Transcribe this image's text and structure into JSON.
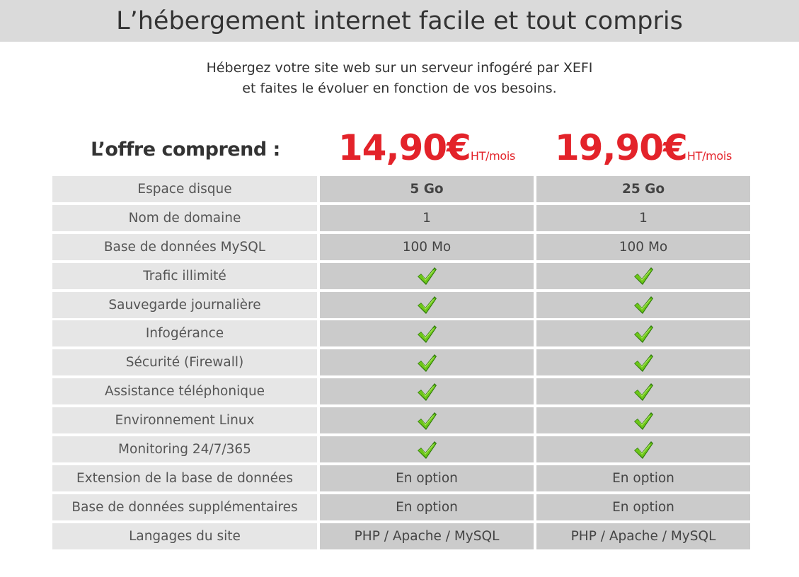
{
  "header": {
    "title": "L’hébergement internet facile et tout compris"
  },
  "intro": {
    "line1": "Hébergez votre site web sur un serveur infogéré par XEFI",
    "line2": "et faites le évoluer en fonction de vos besoins."
  },
  "offer": {
    "label": "L’offre comprend :",
    "plans": [
      {
        "price": "14,90€",
        "unit": "HT/mois"
      },
      {
        "price": "19,90€",
        "unit": "HT/mois"
      }
    ]
  },
  "colors": {
    "price_red": "#e3232a",
    "check_green": "#6cc618"
  },
  "icons": {
    "included": "checkmark-icon"
  },
  "features": [
    {
      "label": "Espace disque",
      "plan1": "5 Go",
      "plan2": "25 Go",
      "bold": true
    },
    {
      "label": "Nom de domaine",
      "plan1": "1",
      "plan2": "1"
    },
    {
      "label": "Base de données MySQL",
      "plan1": "100 Mo",
      "plan2": "100 Mo"
    },
    {
      "label": "Trafic illimité",
      "check": true
    },
    {
      "label": "Sauvegarde journalière",
      "check": true
    },
    {
      "label": "Infogérance",
      "check": true
    },
    {
      "label": "Sécurité (Firewall)",
      "check": true
    },
    {
      "label": "Assistance téléphonique",
      "check": true
    },
    {
      "label": "Environnement Linux",
      "check": true
    },
    {
      "label": "Monitoring 24/7/365",
      "check": true
    },
    {
      "label": "Extension de la base de données",
      "plan1": "En option",
      "plan2": "En option"
    },
    {
      "label": "Base de données supplémentaires",
      "plan1": "En option",
      "plan2": "En option"
    },
    {
      "label": "Langages du site",
      "plan1": "PHP / Apache / MySQL",
      "plan2": "PHP / Apache / MySQL"
    }
  ]
}
